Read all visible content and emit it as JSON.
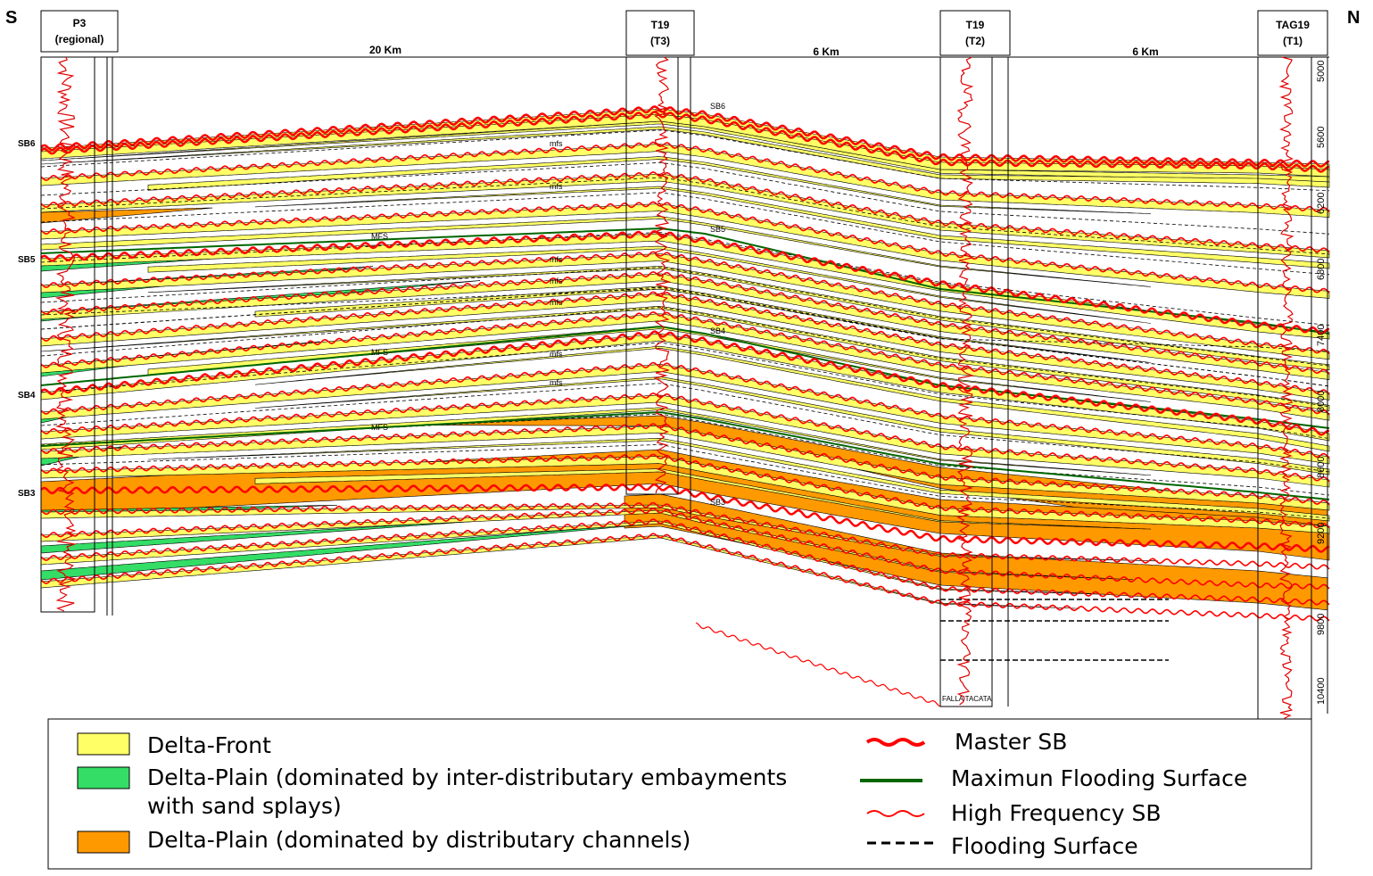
{
  "orientation": {
    "south": "S",
    "north": "N"
  },
  "wells": [
    {
      "name": "P3",
      "sub": "(regional)"
    },
    {
      "name": "T19",
      "sub": "(T3)"
    },
    {
      "name": "T19",
      "sub": "(T2)"
    },
    {
      "name": "TAG19",
      "sub": "(T1)"
    }
  ],
  "distances": [
    "20 Km",
    "6 Km",
    "6 Km"
  ],
  "sequence_boundaries_left": [
    "SB6",
    "SB5",
    "SB4",
    "SB3"
  ],
  "sequence_boundaries_center": [
    "SB6",
    "SB5",
    "SB4",
    "SB3"
  ],
  "surface_labels": {
    "mfs": "mfs",
    "MFS": "MFS"
  },
  "depth_ticks": {
    "tag19": [
      "5000",
      "5600",
      "6200",
      "6800",
      "7400",
      "8000",
      "8600",
      "9200",
      "9800",
      "10400"
    ]
  },
  "fault_label": "FALLA TACATA",
  "legend": {
    "delta_front": "Delta-Front",
    "delta_plain_embayments_1": "Delta-Plain (dominated by inter-distributary embayments",
    "delta_plain_embayments_2": "with sand splays)",
    "delta_plain_channels": "Delta-Plain (dominated by distributary channels)",
    "master_sb": "Master SB",
    "mfs": "Maximun Flooding Surface",
    "hf_sb": "High Frequency SB",
    "flooding_surface": "Flooding Surface"
  },
  "colors": {
    "delta_front": "#ffff66",
    "delta_plain_embayments": "#33dd66",
    "delta_plain_channels": "#ff9900",
    "master_sb": "#ff0000",
    "mfs": "#006600",
    "hf_sb": "#ff0000",
    "flooding_surface": "#000000"
  }
}
